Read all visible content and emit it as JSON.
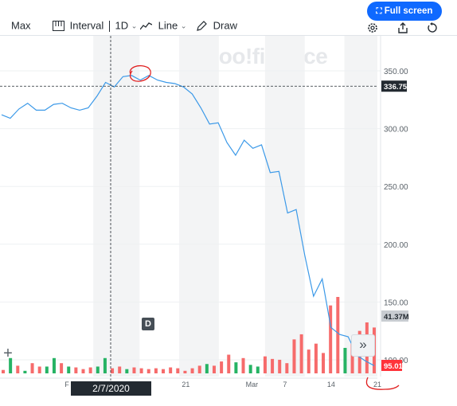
{
  "toolbar": {
    "range_label": "Max",
    "interval_label": "Interval",
    "interval_value": "1D",
    "chart_type_label": "Line",
    "draw_label": "Draw",
    "fullscreen_label": "Full screen",
    "icons": [
      "interval-icon",
      "line-chart-icon",
      "pencil-icon",
      "settings-icon",
      "share-icon",
      "reset-icon",
      "chevron-down-icon"
    ]
  },
  "watermark": "yahoo!finance",
  "crosshair": {
    "date_label": "2/7/2020",
    "price_label": "336.75"
  },
  "overlays": {
    "dividend_marker": "D",
    "volume_label": "41.37M",
    "last_price_label": "95.01",
    "plus_icon": "plus-icon",
    "expand_icon": "double-chevron-right-icon"
  },
  "colors": {
    "line": "#3b99e8",
    "volume_up": "#26b364",
    "volume_down": "#f66b6b",
    "price_badge": "#ff333a",
    "annotation": "#e02020",
    "fullscreen_button": "#0f69ff"
  },
  "chart_data": {
    "type": "line",
    "title": "",
    "xlabel": "",
    "ylabel": "",
    "ylim": [
      85,
      360
    ],
    "y_ticks": [
      "350.00",
      "300.00",
      "250.00",
      "200.00",
      "150.00",
      "100.00"
    ],
    "x_ticks": [
      {
        "label": "F",
        "date": "2020-02-03"
      },
      {
        "label": "14",
        "date": "2020-02-14"
      },
      {
        "label": "21",
        "date": "2020-02-21"
      },
      {
        "label": "Mar",
        "date": "2020-03-02"
      },
      {
        "label": "7",
        "date": "2020-03-07"
      },
      {
        "label": "14",
        "date": "2020-03-14"
      },
      {
        "label": "21",
        "date": "2020-03-21"
      }
    ],
    "series": [
      {
        "values": [
          {
            "x": "2020-01-09",
            "y": 312
          },
          {
            "x": "2020-01-10",
            "y": 309
          },
          {
            "x": "2020-01-13",
            "y": 317
          },
          {
            "x": "2020-01-14",
            "y": 322
          },
          {
            "x": "2020-01-15",
            "y": 316
          },
          {
            "x": "2020-01-16",
            "y": 316
          },
          {
            "x": "2020-01-17",
            "y": 321
          },
          {
            "x": "2020-01-20",
            "y": 322
          },
          {
            "x": "2020-01-21",
            "y": 318
          },
          {
            "x": "2020-01-22",
            "y": 316
          },
          {
            "x": "2020-01-23",
            "y": 318
          },
          {
            "x": "2020-01-24",
            "y": 328
          },
          {
            "x": "2020-01-27",
            "y": 340
          },
          {
            "x": "2020-01-28",
            "y": 336
          },
          {
            "x": "2020-01-29",
            "y": 345
          },
          {
            "x": "2020-01-30",
            "y": 346
          },
          {
            "x": "2020-01-31",
            "y": 342
          },
          {
            "x": "2020-02-03",
            "y": 346
          },
          {
            "x": "2020-02-04",
            "y": 342
          },
          {
            "x": "2020-02-05",
            "y": 340
          },
          {
            "x": "2020-02-06",
            "y": 339
          },
          {
            "x": "2020-02-07",
            "y": 336
          },
          {
            "x": "2020-02-10",
            "y": 330
          },
          {
            "x": "2020-02-11",
            "y": 318
          },
          {
            "x": "2020-02-12",
            "y": 304
          },
          {
            "x": "2020-02-13",
            "y": 305
          },
          {
            "x": "2020-02-14",
            "y": 288
          },
          {
            "x": "2020-02-17",
            "y": 277
          },
          {
            "x": "2020-02-18",
            "y": 290
          },
          {
            "x": "2020-02-19",
            "y": 283
          },
          {
            "x": "2020-02-20",
            "y": 286
          },
          {
            "x": "2020-02-21",
            "y": 262
          },
          {
            "x": "2020-02-24",
            "y": 263
          },
          {
            "x": "2020-02-25",
            "y": 227
          },
          {
            "x": "2020-02-26",
            "y": 230
          },
          {
            "x": "2020-02-27",
            "y": 190
          },
          {
            "x": "2020-02-28",
            "y": 155
          },
          {
            "x": "2020-03-02",
            "y": 170
          },
          {
            "x": "2020-03-03",
            "y": 128
          },
          {
            "x": "2020-03-04",
            "y": 122
          },
          {
            "x": "2020-03-05",
            "y": 120
          },
          {
            "x": "2020-03-06",
            "y": 104
          },
          {
            "x": "2020-03-09",
            "y": 99
          },
          {
            "x": "2020-03-10",
            "y": 95
          }
        ]
      }
    ],
    "volume": {
      "unit": "M",
      "bars": [
        {
          "v": 4,
          "up": false
        },
        {
          "v": 18,
          "up": true
        },
        {
          "v": 9,
          "up": false
        },
        {
          "v": 3,
          "up": true
        },
        {
          "v": 12,
          "up": false
        },
        {
          "v": 8,
          "up": false
        },
        {
          "v": 8,
          "up": true
        },
        {
          "v": 18,
          "up": true
        },
        {
          "v": 12,
          "up": false
        },
        {
          "v": 8,
          "up": true
        },
        {
          "v": 7,
          "up": false
        },
        {
          "v": 5,
          "up": false
        },
        {
          "v": 7,
          "up": false
        },
        {
          "v": 8,
          "up": true
        },
        {
          "v": 18,
          "up": true
        },
        {
          "v": 6,
          "up": false
        },
        {
          "v": 8,
          "up": false
        },
        {
          "v": 5,
          "up": true
        },
        {
          "v": 7,
          "up": false
        },
        {
          "v": 6,
          "up": false
        },
        {
          "v": 5,
          "up": false
        },
        {
          "v": 6,
          "up": false
        },
        {
          "v": 5,
          "up": false
        },
        {
          "v": 7,
          "up": false
        },
        {
          "v": 6,
          "up": false
        },
        {
          "v": 3,
          "up": false
        },
        {
          "v": 6,
          "up": false
        },
        {
          "v": 9,
          "up": false
        },
        {
          "v": 11,
          "up": true
        },
        {
          "v": 9,
          "up": false
        },
        {
          "v": 14,
          "up": false
        },
        {
          "v": 22,
          "up": false
        },
        {
          "v": 13,
          "up": true
        },
        {
          "v": 18,
          "up": false
        },
        {
          "v": 10,
          "up": true
        },
        {
          "v": 8,
          "up": true
        },
        {
          "v": 20,
          "up": false
        },
        {
          "v": 17,
          "up": false
        },
        {
          "v": 16,
          "up": false
        },
        {
          "v": 12,
          "up": false
        },
        {
          "v": 40,
          "up": false
        },
        {
          "v": 46,
          "up": false
        },
        {
          "v": 28,
          "up": false
        },
        {
          "v": 35,
          "up": false
        },
        {
          "v": 24,
          "up": false
        },
        {
          "v": 80,
          "up": false
        },
        {
          "v": 90,
          "up": false
        },
        {
          "v": 30,
          "up": true
        },
        {
          "v": 35,
          "up": false
        },
        {
          "v": 50,
          "up": false
        },
        {
          "v": 60,
          "up": false
        },
        {
          "v": 54,
          "up": false
        }
      ]
    },
    "grid": true,
    "legend": "none"
  }
}
